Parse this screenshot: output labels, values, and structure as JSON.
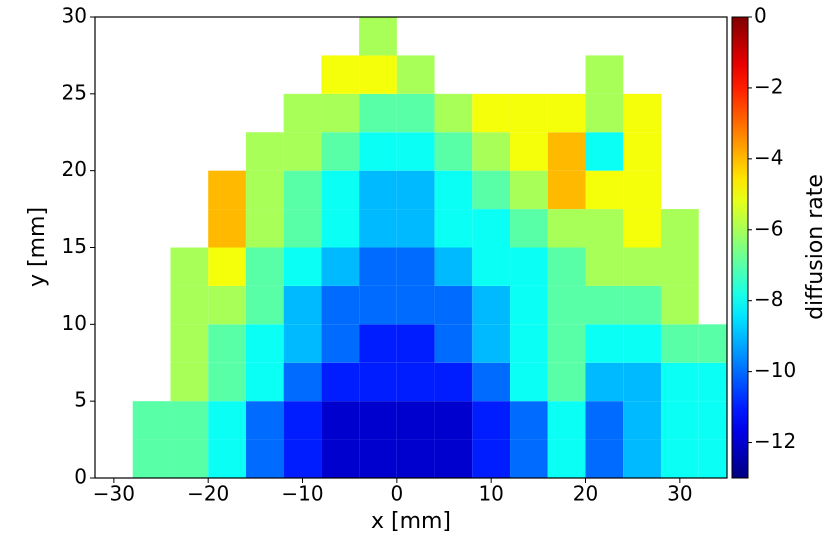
{
  "chart_data": {
    "type": "heatmap",
    "x_label": "x [mm]",
    "y_label": "y [mm]",
    "colorbar_label": "diffusion rate",
    "colormap": "jet",
    "x": [
      -30,
      -26,
      -22,
      -18,
      -14,
      -10,
      -6,
      -2,
      2,
      6,
      10,
      14,
      18,
      22,
      26,
      30,
      34
    ],
    "y": [
      1.25,
      3.75,
      6.25,
      8.75,
      11.25,
      13.75,
      16.25,
      18.75,
      21.25,
      23.75,
      26.25,
      28.75
    ],
    "values": [
      [
        null,
        -7,
        -7,
        -8,
        -10,
        -11,
        -12,
        -12,
        -12,
        -12,
        -11,
        -10,
        -8,
        -10,
        -9,
        -8,
        -8
      ],
      [
        null,
        -7,
        -7,
        -8,
        -10,
        -11,
        -12,
        -12,
        -12,
        -12,
        -11,
        -10,
        -8,
        -10,
        -9,
        -8,
        -8
      ],
      [
        null,
        null,
        -6,
        -7,
        -8,
        -10,
        -11,
        -11,
        -11,
        -11,
        -10,
        -8,
        -7,
        -9,
        -9,
        -8,
        -8
      ],
      [
        null,
        null,
        -6,
        -7,
        -8,
        -9,
        -10,
        -11,
        -11,
        -10,
        -9,
        -8,
        -7,
        -8,
        -8,
        -7,
        -7
      ],
      [
        null,
        null,
        -6,
        -6,
        -7,
        -9,
        -10,
        -10,
        -10,
        -10,
        -9,
        -8,
        -7,
        -7,
        -7,
        -6,
        null
      ],
      [
        null,
        null,
        -6,
        -5,
        -7,
        -8,
        -9,
        -10,
        -10,
        -9,
        -8,
        -8,
        -7,
        -6,
        -6,
        -6,
        null
      ],
      [
        null,
        null,
        null,
        -4,
        -6,
        -7,
        -8,
        -9,
        -9,
        -8,
        -8,
        -7,
        -6,
        -6,
        -5,
        -6,
        null
      ],
      [
        null,
        null,
        null,
        -4,
        -6,
        -7,
        -8,
        -9,
        -9,
        -8,
        -7,
        -6,
        -4,
        -5,
        -5,
        null,
        null
      ],
      [
        null,
        null,
        null,
        null,
        -6,
        -6,
        -7,
        -8,
        -8,
        -7,
        -6,
        -5,
        -4,
        -8,
        -5,
        null,
        null
      ],
      [
        null,
        null,
        null,
        null,
        null,
        -6,
        -6,
        -7,
        -7,
        -6,
        -5,
        -5,
        -5,
        -6,
        -5,
        null,
        null
      ],
      [
        null,
        null,
        null,
        null,
        null,
        null,
        -5,
        -5,
        -6,
        null,
        null,
        null,
        null,
        -6,
        null,
        null,
        null
      ],
      [
        null,
        null,
        null,
        null,
        null,
        null,
        null,
        -6,
        null,
        null,
        null,
        null,
        null,
        null,
        null,
        null,
        null
      ]
    ],
    "xlim": [
      -32,
      35
    ],
    "ylim": [
      0,
      30
    ],
    "xticks": [
      {
        "value": -30,
        "label": "−30"
      },
      {
        "value": -20,
        "label": "−20"
      },
      {
        "value": -10,
        "label": "−10"
      },
      0,
      10,
      20,
      30
    ],
    "yticks": [
      0,
      5,
      10,
      15,
      20,
      25,
      30
    ],
    "clim": [
      -13,
      0
    ],
    "cticks": [
      0,
      {
        "value": -2,
        "label": "−2"
      },
      {
        "value": -4,
        "label": "−4"
      },
      {
        "value": -6,
        "label": "−6"
      },
      {
        "value": -8,
        "label": "−8"
      },
      {
        "value": -10,
        "label": "−10"
      },
      {
        "value": -12,
        "label": "−12"
      }
    ]
  }
}
